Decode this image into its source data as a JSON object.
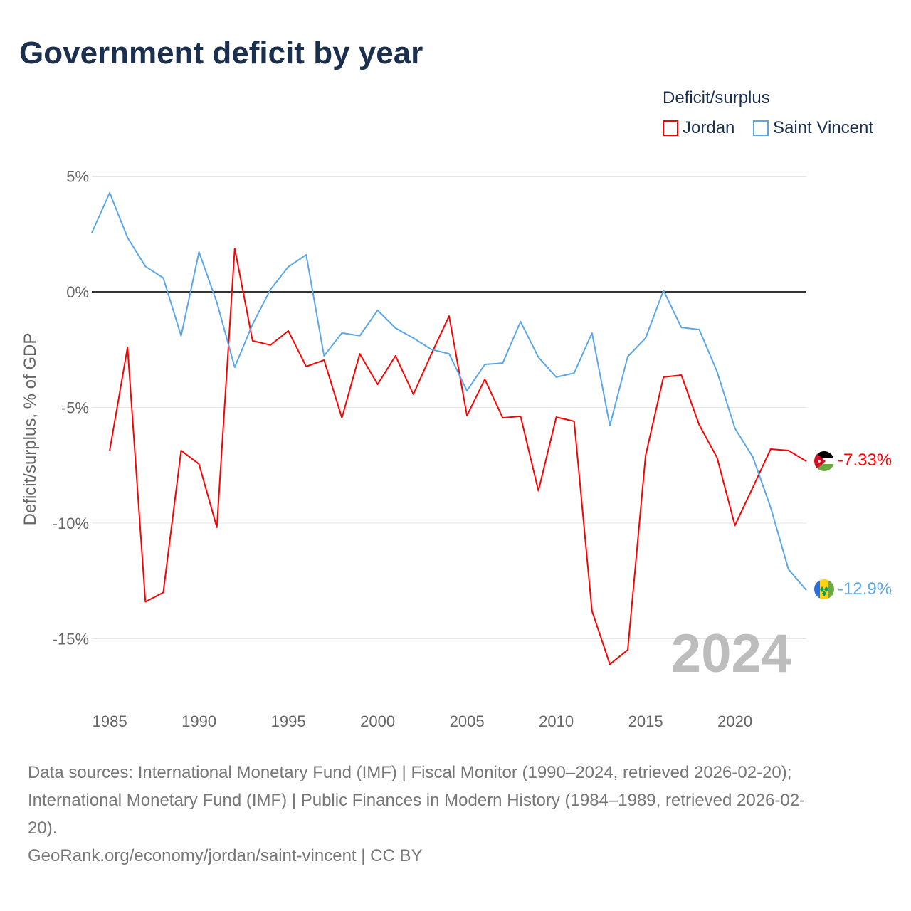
{
  "chart_data": {
    "type": "line",
    "title": "Government deficit by year",
    "ylabel": "Deficit/surplus, % of GDP",
    "xlabel": "",
    "ylim": [
      -17.5,
      5.5
    ],
    "xlim": [
      1984,
      2024
    ],
    "yticks": [
      5,
      0,
      -5,
      -10,
      -15
    ],
    "ytick_labels": [
      "5%",
      "0%",
      "-5%",
      "-10%",
      "-15%"
    ],
    "xticks": [
      1985,
      1990,
      1995,
      2000,
      2005,
      2010,
      2015,
      2020
    ],
    "xtick_labels": [
      "1985",
      "1990",
      "1995",
      "2000",
      "2005",
      "2010",
      "2015",
      "2020"
    ],
    "grid": true,
    "legend": {
      "title": "Deficit/surplus",
      "placement": "top-right"
    },
    "year_watermark": "2024",
    "series": [
      {
        "name": "Jordan",
        "color": "#ff0000",
        "end_label": "-7.33%",
        "x": [
          1985,
          1986,
          1987,
          1988,
          1989,
          1990,
          1991,
          1992,
          1993,
          1994,
          1995,
          1996,
          1997,
          1998,
          1999,
          2000,
          2001,
          2002,
          2003,
          2004,
          2005,
          2006,
          2007,
          2008,
          2009,
          2010,
          2011,
          2012,
          2013,
          2014,
          2015,
          2016,
          2017,
          2018,
          2019,
          2020,
          2021,
          2022,
          2023,
          2024
        ],
        "values": [
          -6.86,
          -2.4,
          -13.4,
          -13.0,
          -6.86,
          -7.45,
          -10.18,
          1.88,
          -2.12,
          -2.3,
          -1.69,
          -3.23,
          -2.95,
          -5.45,
          -2.68,
          -4.0,
          -2.77,
          -4.43,
          -2.7,
          -1.05,
          -5.35,
          -3.78,
          -5.45,
          -5.38,
          -8.6,
          -5.42,
          -5.6,
          -13.8,
          -16.1,
          -15.48,
          -7.08,
          -3.69,
          -3.6,
          -5.75,
          -7.17,
          -10.1,
          -8.46,
          -6.8,
          -6.86,
          -7.33
        ]
      },
      {
        "name": "Saint Vincent",
        "color": "#5ba7e8",
        "end_label": "-12.9%",
        "x": [
          1984,
          1985,
          1986,
          1987,
          1988,
          1989,
          1990,
          1991,
          1992,
          1993,
          1994,
          1995,
          1996,
          1997,
          1998,
          1999,
          2000,
          2001,
          2002,
          2003,
          2004,
          2005,
          2006,
          2007,
          2008,
          2009,
          2010,
          2011,
          2012,
          2013,
          2014,
          2015,
          2016,
          2017,
          2018,
          2019,
          2020,
          2021,
          2022,
          2023,
          2024
        ],
        "values": [
          2.55,
          4.28,
          2.34,
          1.1,
          0.6,
          -1.9,
          1.72,
          -0.46,
          -3.26,
          -1.4,
          0.1,
          1.08,
          1.6,
          -2.77,
          -1.78,
          -1.9,
          -0.8,
          -1.57,
          -2.0,
          -2.49,
          -2.68,
          -4.28,
          -3.14,
          -3.08,
          -1.29,
          -2.83,
          -3.69,
          -3.51,
          -1.78,
          -5.78,
          -2.8,
          -2.0,
          0.06,
          -1.54,
          -1.63,
          -3.45,
          -5.9,
          -7.14,
          -9.32,
          -12.0,
          -12.9
        ]
      }
    ]
  },
  "footer": {
    "sources_line1": "Data sources: International Monetary Fund (IMF) | Fiscal Monitor (1990–2024, retrieved 2026-02-20);",
    "sources_line2": "International Monetary Fund (IMF) | Public Finances in Modern History (1984–1989, retrieved 2026-02-",
    "sources_line3": "20).",
    "credit": "GeoRank.org/economy/jordan/saint-vincent | CC BY"
  }
}
